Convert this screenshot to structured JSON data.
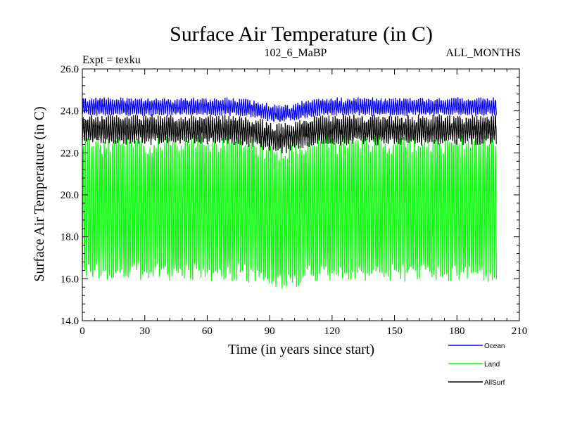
{
  "chart_data": {
    "type": "line",
    "title": "Surface Air Temperature (in C)",
    "subtitle_left": "Expt = texku",
    "subtitle_center": "102_6_MaBP",
    "subtitle_right": "ALL_MONTHS",
    "xlabel": "Time (in years since start)",
    "ylabel": "Surface Air Temperature (in C)",
    "xlim": [
      0,
      210
    ],
    "ylim": [
      14.0,
      26.0
    ],
    "x_ticks": [
      0,
      30,
      60,
      90,
      120,
      150,
      180,
      210
    ],
    "x_tick_labels": [
      "0",
      "30",
      "60",
      "90",
      "120",
      "150",
      "180",
      "210"
    ],
    "y_ticks": [
      14,
      16,
      18,
      20,
      22,
      24,
      26
    ],
    "y_tick_labels": [
      "14.0",
      "16.0",
      "18.0",
      "20.0",
      "22.0",
      "24.0",
      "26.0"
    ],
    "samples_per_year": 12,
    "x_end": 199,
    "legend_position": "bottom-right",
    "series": [
      {
        "name": "Land",
        "color": "#00ff00",
        "seasonal_min": 16.3,
        "seasonal_max": 22.4,
        "noise": 0.45,
        "slow_dip_year": 95,
        "slow_dip_depth": 0.4
      },
      {
        "name": "AllSurf",
        "color": "#000000",
        "seasonal_min": 22.6,
        "seasonal_max": 23.6,
        "noise": 0.25,
        "slow_dip_year": 95,
        "slow_dip_depth": 0.4
      },
      {
        "name": "Ocean",
        "color": "#0000ff",
        "seasonal_min": 23.9,
        "seasonal_max": 24.5,
        "noise": 0.15,
        "slow_dip_year": 95,
        "slow_dip_depth": 0.35
      }
    ],
    "legend": [
      {
        "name": "Ocean",
        "color": "#0000ff"
      },
      {
        "name": "Land",
        "color": "#00ff00"
      },
      {
        "name": "AllSurf",
        "color": "#000000"
      }
    ]
  }
}
